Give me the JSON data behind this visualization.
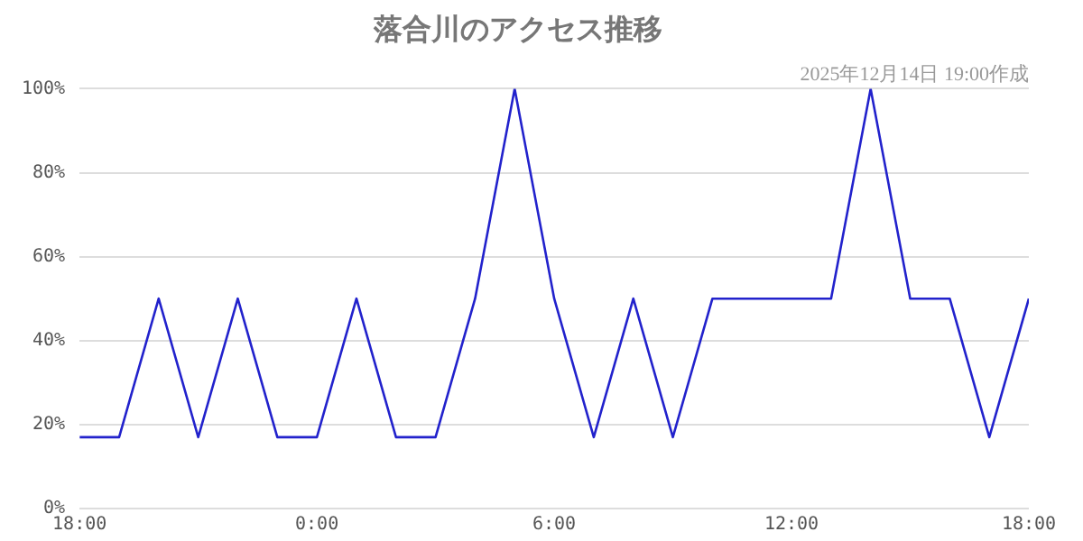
{
  "chart_data": {
    "type": "line",
    "title": "落合川のアクセス推移",
    "subtitle": "2025年12月14日 19:00作成",
    "x": [
      "2025-12-13T18:00",
      "2025-12-13T19:00",
      "2025-12-13T20:00",
      "2025-12-13T21:00",
      "2025-12-13T22:00",
      "2025-12-13T23:00",
      "2025-12-14T00:00",
      "2025-12-14T01:00",
      "2025-12-14T02:00",
      "2025-12-14T03:00",
      "2025-12-14T04:00",
      "2025-12-14T05:00",
      "2025-12-14T06:00",
      "2025-12-14T07:00",
      "2025-12-14T08:00",
      "2025-12-14T09:00",
      "2025-12-14T10:00",
      "2025-12-14T11:00",
      "2025-12-14T12:00",
      "2025-12-14T13:00",
      "2025-12-14T14:00",
      "2025-12-14T15:00",
      "2025-12-14T16:00",
      "2025-12-14T17:00",
      "2025-12-14T18:00"
    ],
    "series": [
      {
        "color": "#2222cc",
        "values": [
          17,
          17,
          50,
          17,
          50,
          17,
          17,
          50,
          17,
          17,
          50,
          100,
          50,
          17,
          50,
          17,
          50,
          50,
          50,
          50,
          100,
          50,
          50,
          17,
          50
        ]
      }
    ],
    "xlim": [
      "2025-12-13T18:00",
      "2025-12-14T18:00"
    ],
    "xticks": [
      {
        "value": "2025-12-13T18:00",
        "label": "18:00"
      },
      {
        "value": "2025-12-14T00:00",
        "label": "0:00"
      },
      {
        "value": "2025-12-14T06:00",
        "label": "6:00"
      },
      {
        "value": "2025-12-14T12:00",
        "label": "12:00"
      },
      {
        "value": "2025-12-14T18:00",
        "label": "18:00"
      }
    ],
    "ylim": [
      0,
      100
    ],
    "yticks": [
      {
        "value": 0,
        "label": "0%"
      },
      {
        "value": 20,
        "label": "20%"
      },
      {
        "value": 40,
        "label": "40%"
      },
      {
        "value": 60,
        "label": "60%"
      },
      {
        "value": 80,
        "label": "80%"
      },
      {
        "value": 100,
        "label": "100%"
      }
    ],
    "grid": "y",
    "legend": false,
    "marker": "none",
    "line_style": "solid"
  }
}
